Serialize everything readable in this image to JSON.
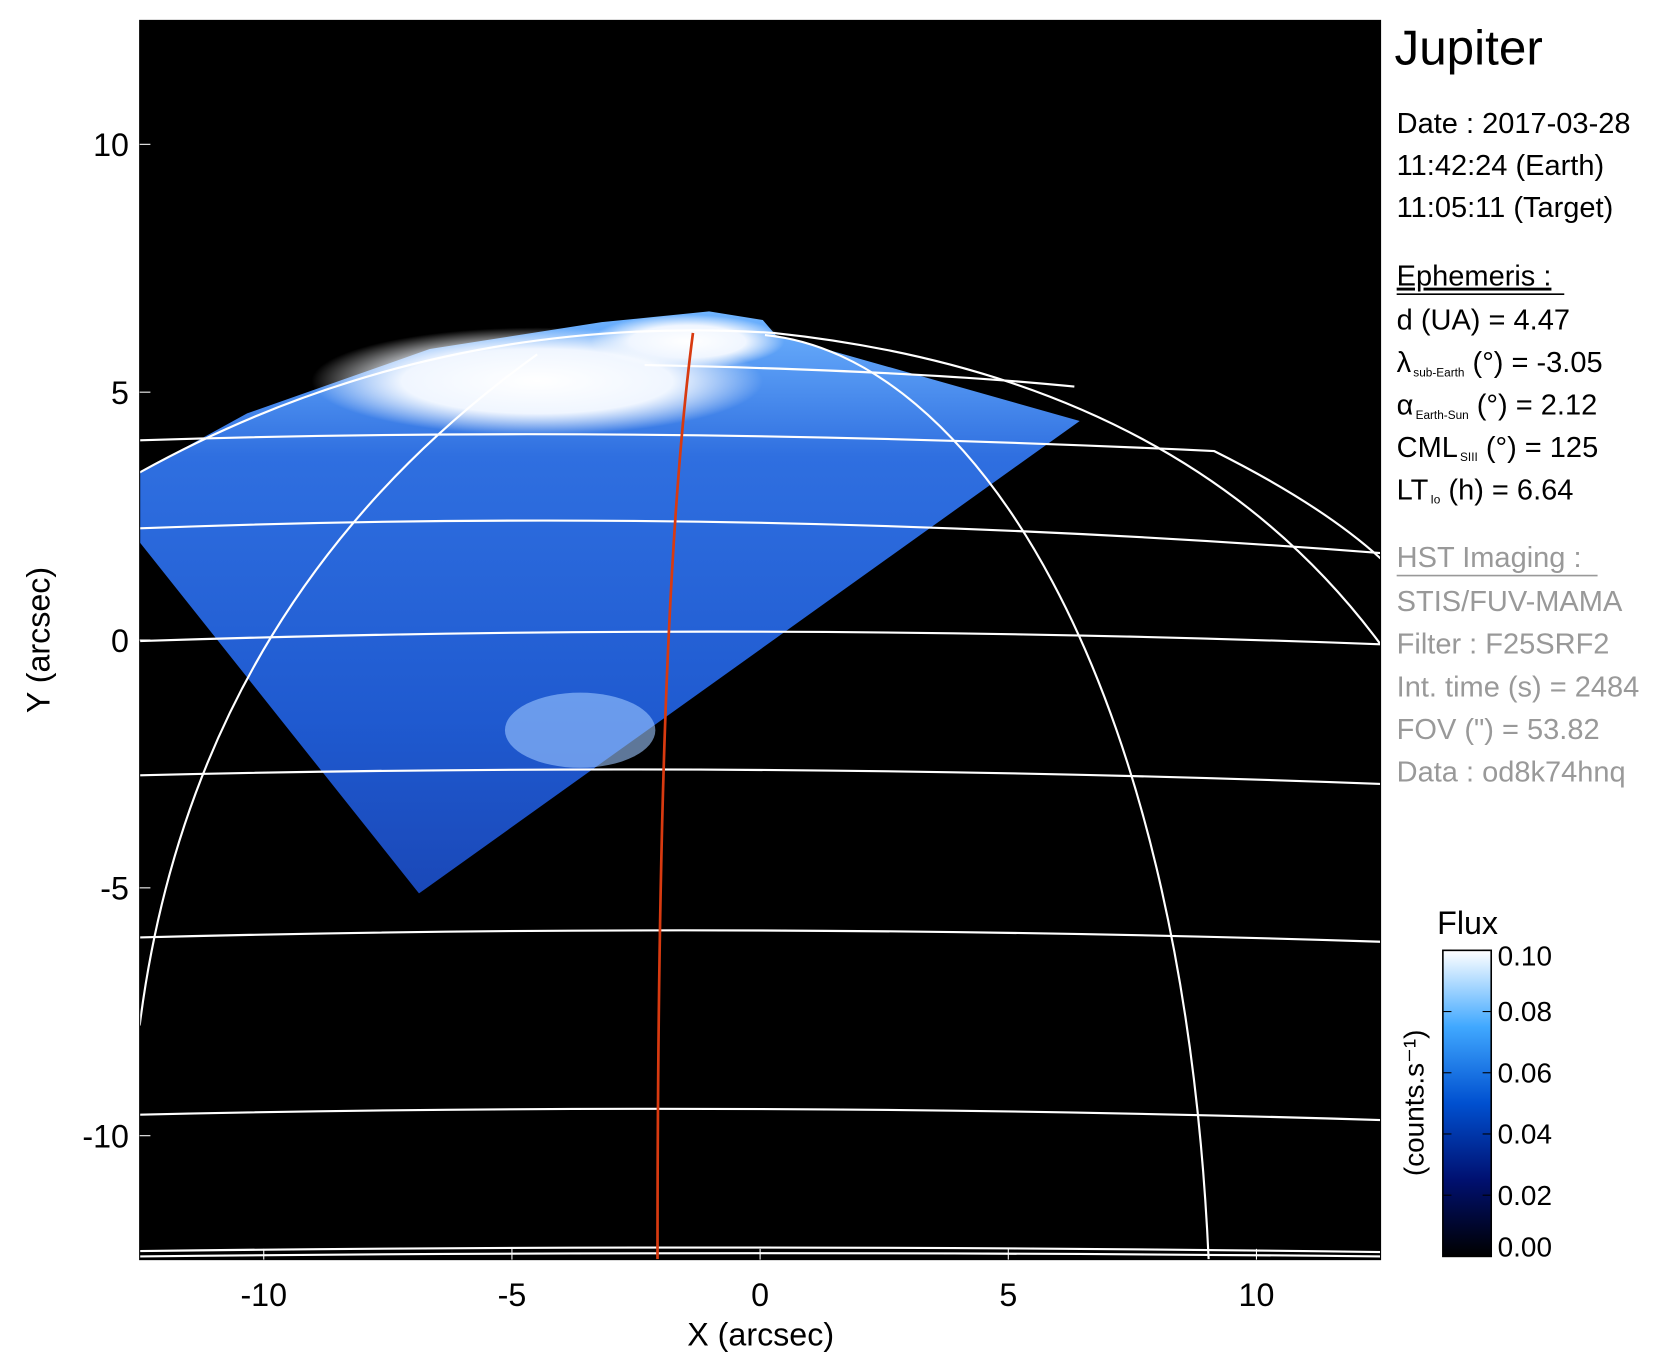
{
  "chart_data": {
    "type": "image",
    "xlabel": "X (arcsec)",
    "ylabel": "Y (arcsec)",
    "xlim": [
      -12.5,
      12.5
    ],
    "ylim": [
      -12.5,
      12.5
    ],
    "xticks": [
      -10,
      -5,
      0,
      5,
      10
    ],
    "yticks": [
      -10,
      -5,
      0,
      5,
      10
    ],
    "colorbar": {
      "title": "Flux",
      "label": "(counts.s⁻¹)",
      "lim": [
        0,
        0.1
      ],
      "ticks": [
        {
          "value": 0,
          "label": "0.00"
        },
        {
          "value": 0.02,
          "label": "0.02"
        },
        {
          "value": 0.04,
          "label": "0.04"
        },
        {
          "value": 0.06,
          "label": "0.06"
        },
        {
          "value": 0.08,
          "label": "0.08"
        },
        {
          "value": 0.1,
          "label": "0.10"
        }
      ]
    },
    "info": {
      "title": "Jupiter",
      "date": [
        "Date : 2017-03-28",
        "11:42:24 (Earth)",
        "11:05:11 (Target)"
      ],
      "ephemeris": {
        "heading": "Ephemeris :",
        "lines": [
          {
            "symbol": "d (UA)    = 4.47"
          },
          {
            "symbol": "λ",
            "sub": "sub-Earth",
            "text": " (°) = -3.05"
          },
          {
            "symbol": "α",
            "sub": "Earth-Sun",
            "text": " (°) = 2.12"
          },
          {
            "symbol": "CML",
            "sub": "SIII",
            "text": " (°) = 125"
          },
          {
            "symbol": "LT",
            "sub": "Io",
            "text": " (h) = 6.64"
          }
        ]
      },
      "imaging": {
        "heading": "HST Imaging :",
        "lines": [
          "STIS/FUV-MAMA",
          "Filter : F25SRF2",
          "Int. time (s) = 2484",
          "FOV (\") = 53.82",
          "Data : od8k74hnq"
        ]
      }
    }
  }
}
